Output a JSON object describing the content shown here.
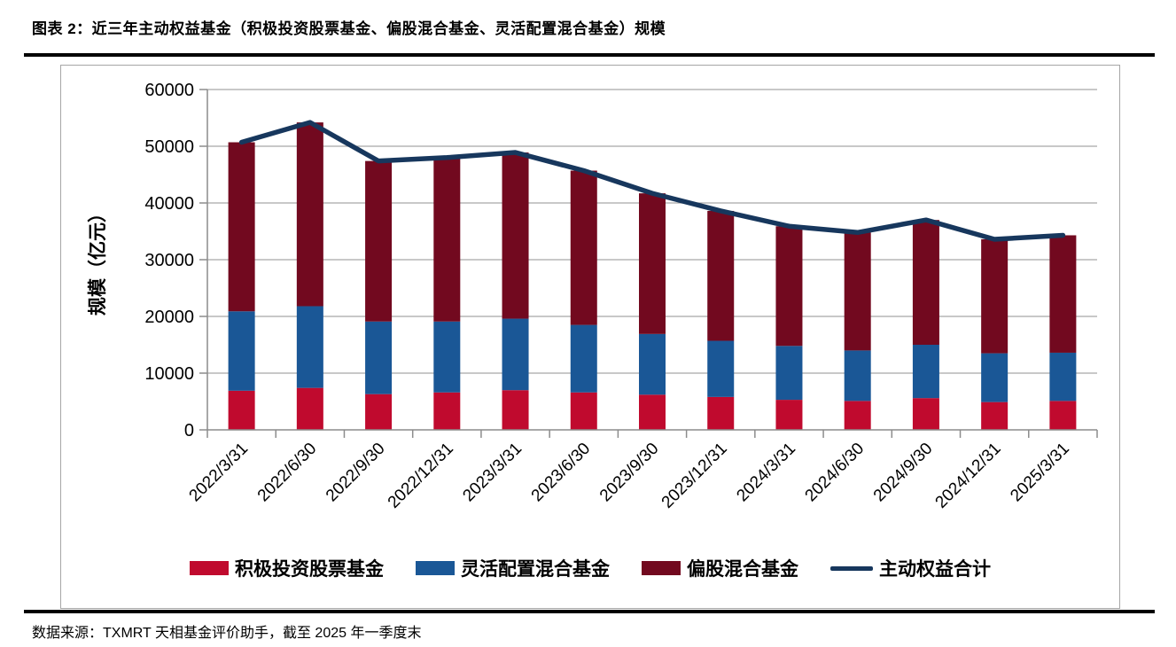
{
  "page": {
    "title": "图表 2：近三年主动权益基金（积极投资股票基金、偏股混合基金、灵活配置混合基金）规模",
    "source_note": "数据来源：TXMRT 天相基金评价助手，截至 2025 年一季度末"
  },
  "chart_data": {
    "type": "bar",
    "stacked": true,
    "title": "",
    "ylabel": "规模（亿元）",
    "xlabel": "",
    "ylim": [
      0,
      60000
    ],
    "ytick_step": 10000,
    "grid": true,
    "legend_position": "bottom",
    "axis_color": "#8c8c8c",
    "grid_color": "#a6a6a6",
    "categories": [
      "2022/3/31",
      "2022/6/30",
      "2022/9/30",
      "2022/12/31",
      "2023/3/31",
      "2023/6/30",
      "2023/9/30",
      "2023/12/31",
      "2024/3/31",
      "2024/6/30",
      "2024/9/30",
      "2024/12/31",
      "2025/3/31"
    ],
    "series": [
      {
        "name": "积极投资股票基金",
        "color": "#c00a2e",
        "values": [
          6900,
          7400,
          6300,
          6600,
          7000,
          6600,
          6200,
          5800,
          5300,
          5100,
          5600,
          4900,
          5100
        ]
      },
      {
        "name": "灵活配置混合基金",
        "color": "#1a5796",
        "values": [
          14000,
          14400,
          12800,
          12500,
          12600,
          11900,
          10700,
          9900,
          9500,
          8900,
          9400,
          8600,
          8500
        ]
      },
      {
        "name": "偏股混合基金",
        "color": "#72091f",
        "values": [
          29800,
          32400,
          28300,
          28900,
          29300,
          27200,
          24800,
          22900,
          21100,
          20800,
          22000,
          20100,
          20700
        ]
      }
    ],
    "line_series": {
      "name": "主动权益合计",
      "color": "#17375d",
      "values": [
        50700,
        54200,
        47400,
        48000,
        48900,
        45700,
        41700,
        38600,
        35900,
        34800,
        37000,
        33600,
        34300
      ]
    }
  }
}
